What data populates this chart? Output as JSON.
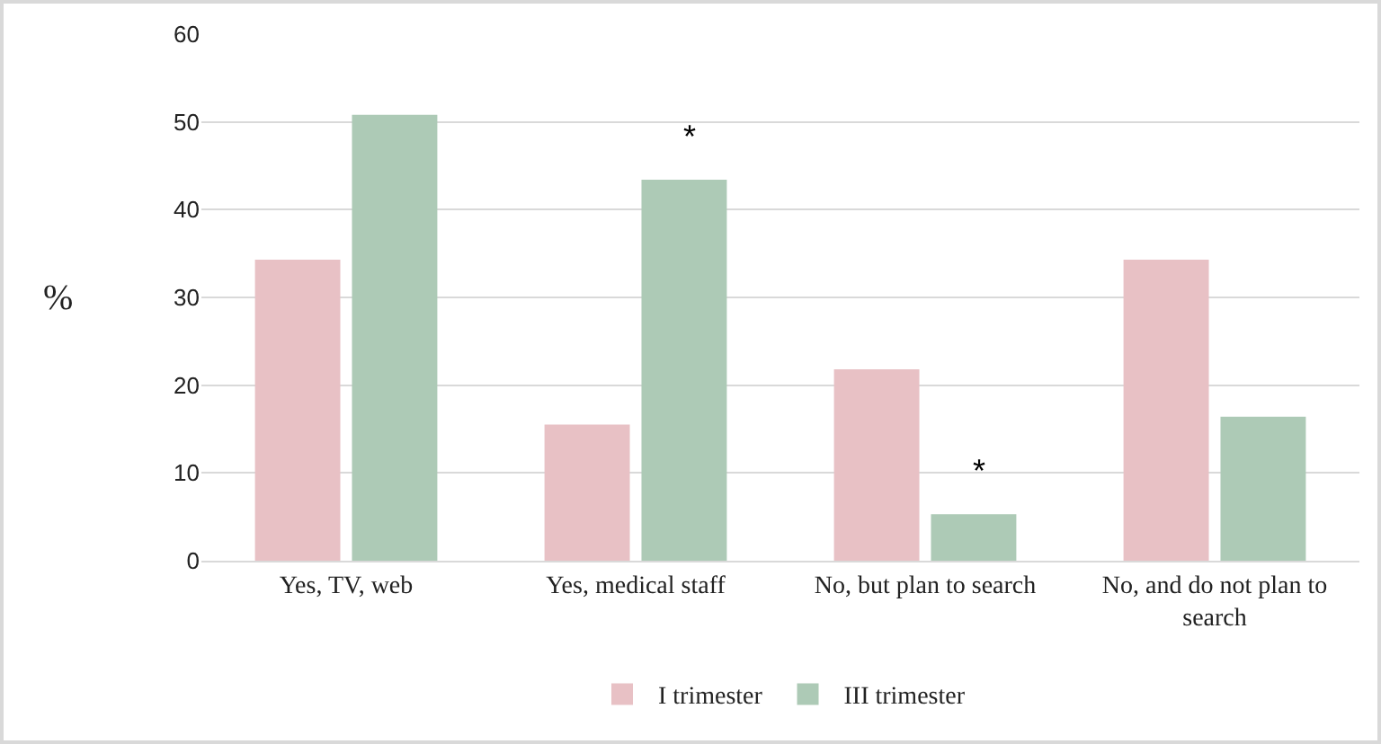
{
  "chart_data": {
    "type": "bar",
    "ylabel": "%",
    "categories": [
      "Yes, TV, web",
      "Yes, medical staff",
      "No, but plan to search",
      "No, and do not plan to search"
    ],
    "series": [
      {
        "name": "I trimester",
        "color": "#e8c1c5",
        "values": [
          34.3,
          15.5,
          21.8,
          34.3
        ]
      },
      {
        "name": "III trimester",
        "color": "#adcab6",
        "values": [
          50.8,
          43.4,
          5.3,
          16.4
        ]
      }
    ],
    "ylim": [
      0,
      60
    ],
    "yticks": [
      0,
      10,
      20,
      30,
      40,
      50,
      60
    ],
    "grid": "y",
    "legend": "bottom",
    "annotations": [
      {
        "text": "*",
        "x": "Yes, medical staff",
        "y": 43.4
      },
      {
        "text": "*",
        "x": "No, but plan to search",
        "y": 5.3
      }
    ]
  }
}
